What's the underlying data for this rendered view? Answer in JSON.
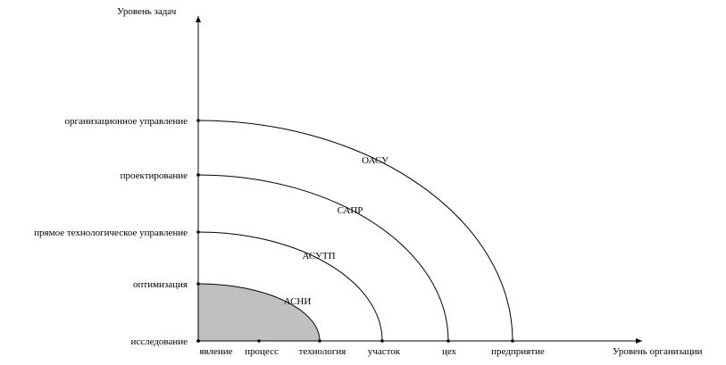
{
  "y_axis": {
    "title": "Уровень задач",
    "levels": [
      "исследование",
      "оптимизация",
      "прямое технологическое управление",
      "проектирование",
      "организационное управление"
    ]
  },
  "x_axis": {
    "title": "Уровень организации",
    "levels": [
      "явление",
      "процесс",
      "технология",
      "участок",
      "цех",
      "предприятие"
    ]
  },
  "systems": [
    {
      "label": "АСНИ",
      "y_level": 1,
      "x_level": 2,
      "filled": true
    },
    {
      "label": "АСУТП",
      "y_level": 2,
      "x_level": 3,
      "filled": false
    },
    {
      "label": "САПР",
      "y_level": 3,
      "x_level": 4,
      "filled": false
    },
    {
      "label": "ОАСУ",
      "y_level": 4,
      "x_level": 5,
      "filled": false
    }
  ],
  "colors": {
    "fill": "#c0c0c0",
    "stroke": "#000000"
  }
}
